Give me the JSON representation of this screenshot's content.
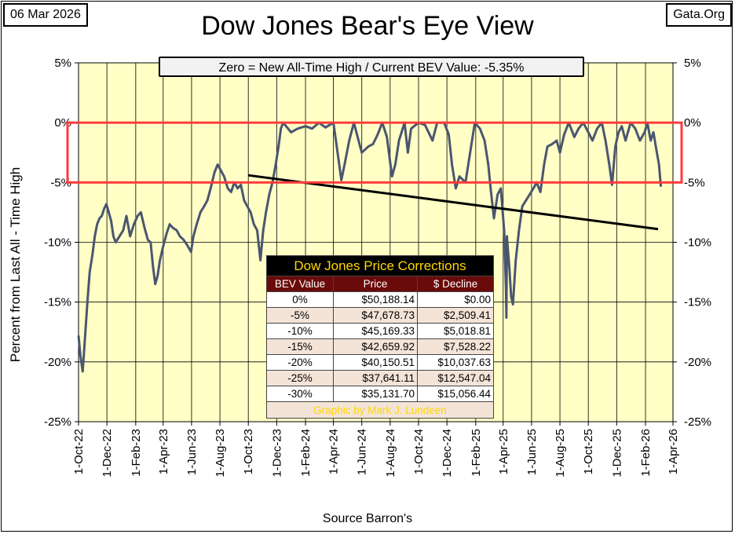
{
  "header": {
    "date": "06 Mar 2026",
    "site": "Gata.Org",
    "title": "Dow Jones Bear's Eye View",
    "subtitle": "Zero = New All-Time High / Current BEV Value:  -5.35%"
  },
  "chart_data": {
    "type": "line",
    "title": "Dow Jones Bear's Eye View",
    "ylabel": "Percent from Last All - Time  High",
    "xlabel": "Source Barron's",
    "ylim": [
      -25,
      5
    ],
    "yticks": [
      "5%",
      "0%",
      "-5%",
      "-10%",
      "-15%",
      "-20%",
      "-25%"
    ],
    "ytick_values": [
      5,
      0,
      -5,
      -10,
      -15,
      -20,
      -25
    ],
    "x_ticks": [
      "1-Oct-22",
      "1-Dec-22",
      "1-Feb-23",
      "1-Apr-23",
      "1-Jun-23",
      "1-Aug-23",
      "1-Oct-23",
      "1-Dec-23",
      "1-Feb-24",
      "1-Apr-24",
      "1-Jun-24",
      "1-Aug-24",
      "1-Oct-24",
      "1-Dec-24",
      "1-Feb-25",
      "1-Apr-25",
      "1-Jun-25",
      "1-Aug-25",
      "1-Oct-25",
      "1-Dec-25",
      "1-Feb-26",
      "1-Apr-26"
    ],
    "grid": true,
    "series": [
      {
        "color": "#4a5670",
        "points": [
          [
            "2022-10-01",
            -17.8
          ],
          [
            "2022-10-05",
            -19.5
          ],
          [
            "2022-10-10",
            -20.8
          ],
          [
            "2022-10-14",
            -18.5
          ],
          [
            "2022-10-20",
            -15.0
          ],
          [
            "2022-10-25",
            -12.5
          ],
          [
            "2022-10-31",
            -11.0
          ],
          [
            "2022-11-05",
            -9.5
          ],
          [
            "2022-11-10",
            -8.5
          ],
          [
            "2022-11-15",
            -8.0
          ],
          [
            "2022-11-20",
            -7.8
          ],
          [
            "2022-11-25",
            -7.2
          ],
          [
            "2022-11-30",
            -6.8
          ],
          [
            "2022-12-05",
            -7.5
          ],
          [
            "2022-12-10",
            -8.2
          ],
          [
            "2022-12-15",
            -9.5
          ],
          [
            "2022-12-20",
            -10.0
          ],
          [
            "2022-12-28",
            -9.5
          ],
          [
            "2023-01-05",
            -9.0
          ],
          [
            "2023-01-12",
            -7.8
          ],
          [
            "2023-01-20",
            -9.5
          ],
          [
            "2023-01-28",
            -8.5
          ],
          [
            "2023-02-05",
            -7.8
          ],
          [
            "2023-02-12",
            -7.5
          ],
          [
            "2023-02-20",
            -8.8
          ],
          [
            "2023-02-27",
            -9.8
          ],
          [
            "2023-03-05",
            -10.0
          ],
          [
            "2023-03-10",
            -12.0
          ],
          [
            "2023-03-15",
            -13.5
          ],
          [
            "2023-03-20",
            -12.8
          ],
          [
            "2023-03-25",
            -11.5
          ],
          [
            "2023-03-31",
            -10.5
          ],
          [
            "2023-04-08",
            -9.3
          ],
          [
            "2023-04-15",
            -8.5
          ],
          [
            "2023-04-22",
            -8.8
          ],
          [
            "2023-04-30",
            -9.0
          ],
          [
            "2023-05-07",
            -9.5
          ],
          [
            "2023-05-15",
            -9.8
          ],
          [
            "2023-05-22",
            -10.2
          ],
          [
            "2023-05-31",
            -10.8
          ],
          [
            "2023-06-05",
            -9.5
          ],
          [
            "2023-06-12",
            -8.5
          ],
          [
            "2023-06-20",
            -7.5
          ],
          [
            "2023-06-28",
            -7.0
          ],
          [
            "2023-07-05",
            -6.5
          ],
          [
            "2023-07-12",
            -5.5
          ],
          [
            "2023-07-20",
            -4.2
          ],
          [
            "2023-07-27",
            -3.5
          ],
          [
            "2023-08-03",
            -4.0
          ],
          [
            "2023-08-10",
            -4.5
          ],
          [
            "2023-08-18",
            -5.5
          ],
          [
            "2023-08-25",
            -5.8
          ],
          [
            "2023-09-01",
            -5.0
          ],
          [
            "2023-09-08",
            -5.5
          ],
          [
            "2023-09-15",
            -5.2
          ],
          [
            "2023-09-22",
            -6.5
          ],
          [
            "2023-09-29",
            -7.0
          ],
          [
            "2023-10-06",
            -7.5
          ],
          [
            "2023-10-13",
            -8.5
          ],
          [
            "2023-10-20",
            -9.0
          ],
          [
            "2023-10-27",
            -11.5
          ],
          [
            "2023-11-02",
            -9.0
          ],
          [
            "2023-11-08",
            -7.5
          ],
          [
            "2023-11-15",
            -6.0
          ],
          [
            "2023-11-22",
            -5.0
          ],
          [
            "2023-11-29",
            -3.5
          ],
          [
            "2023-12-05",
            -2.0
          ],
          [
            "2023-12-10",
            -0.5
          ],
          [
            "2023-12-15",
            0.0
          ],
          [
            "2024-01-01",
            -0.8
          ],
          [
            "2024-01-15",
            -0.5
          ],
          [
            "2024-02-01",
            -0.3
          ],
          [
            "2024-02-15",
            -0.5
          ],
          [
            "2024-03-01",
            0.0
          ],
          [
            "2024-03-15",
            -0.4
          ],
          [
            "2024-04-01",
            0.0
          ],
          [
            "2024-04-10",
            -2.5
          ],
          [
            "2024-04-18",
            -4.8
          ],
          [
            "2024-04-25",
            -3.5
          ],
          [
            "2024-05-05",
            -1.5
          ],
          [
            "2024-05-15",
            0.0
          ],
          [
            "2024-05-25",
            -1.5
          ],
          [
            "2024-06-01",
            -2.5
          ],
          [
            "2024-06-15",
            -2.0
          ],
          [
            "2024-06-25",
            -1.8
          ],
          [
            "2024-07-05",
            -1.0
          ],
          [
            "2024-07-15",
            0.0
          ],
          [
            "2024-07-25",
            -1.2
          ],
          [
            "2024-08-05",
            -4.5
          ],
          [
            "2024-08-12",
            -3.5
          ],
          [
            "2024-08-20",
            -1.5
          ],
          [
            "2024-09-01",
            0.0
          ],
          [
            "2024-09-08",
            -2.5
          ],
          [
            "2024-09-15",
            -0.5
          ],
          [
            "2024-10-01",
            0.0
          ],
          [
            "2024-10-15",
            -0.2
          ],
          [
            "2024-10-31",
            -1.5
          ],
          [
            "2024-11-10",
            0.0
          ],
          [
            "2024-11-25",
            0.0
          ],
          [
            "2024-12-05",
            -1.0
          ],
          [
            "2024-12-12",
            -3.5
          ],
          [
            "2024-12-20",
            -5.5
          ],
          [
            "2024-12-28",
            -4.5
          ],
          [
            "2025-01-10",
            -5.0
          ],
          [
            "2025-01-20",
            -2.5
          ],
          [
            "2025-01-30",
            0.0
          ],
          [
            "2025-02-10",
            -0.5
          ],
          [
            "2025-02-20",
            -1.5
          ],
          [
            "2025-02-28",
            -3.5
          ],
          [
            "2025-03-05",
            -5.5
          ],
          [
            "2025-03-12",
            -8.0
          ],
          [
            "2025-03-20",
            -6.0
          ],
          [
            "2025-03-27",
            -5.5
          ],
          [
            "2025-04-03",
            -9.0
          ],
          [
            "2025-04-07",
            -14.0
          ],
          [
            "2025-04-08",
            -16.3
          ],
          [
            "2025-04-09",
            -9.5
          ],
          [
            "2025-04-14",
            -12.0
          ],
          [
            "2025-04-18",
            -14.5
          ],
          [
            "2025-04-22",
            -15.2
          ],
          [
            "2025-04-28",
            -11.5
          ],
          [
            "2025-05-05",
            -9.0
          ],
          [
            "2025-05-12",
            -7.0
          ],
          [
            "2025-05-20",
            -6.5
          ],
          [
            "2025-05-28",
            -6.0
          ],
          [
            "2025-06-05",
            -5.5
          ],
          [
            "2025-06-12",
            -5.0
          ],
          [
            "2025-06-20",
            -5.8
          ],
          [
            "2025-06-28",
            -3.5
          ],
          [
            "2025-07-05",
            -2.0
          ],
          [
            "2025-07-15",
            -1.8
          ],
          [
            "2025-07-25",
            -1.5
          ],
          [
            "2025-08-01",
            -2.5
          ],
          [
            "2025-08-10",
            -1.0
          ],
          [
            "2025-08-20",
            0.0
          ],
          [
            "2025-09-01",
            -1.2
          ],
          [
            "2025-09-10",
            -0.5
          ],
          [
            "2025-09-20",
            0.0
          ],
          [
            "2025-10-01",
            -0.8
          ],
          [
            "2025-10-10",
            -1.5
          ],
          [
            "2025-10-20",
            -0.5
          ],
          [
            "2025-10-30",
            0.0
          ],
          [
            "2025-11-07",
            -1.5
          ],
          [
            "2025-11-15",
            -3.5
          ],
          [
            "2025-11-21",
            -5.2
          ],
          [
            "2025-11-28",
            -2.0
          ],
          [
            "2025-12-05",
            -0.8
          ],
          [
            "2025-12-12",
            -0.3
          ],
          [
            "2025-12-20",
            -1.5
          ],
          [
            "2025-12-31",
            0.0
          ],
          [
            "2026-01-10",
            -0.5
          ],
          [
            "2026-01-20",
            -1.5
          ],
          [
            "2026-01-30",
            -0.8
          ],
          [
            "2026-02-05",
            0.0
          ],
          [
            "2026-02-12",
            -1.5
          ],
          [
            "2026-02-18",
            -0.8
          ],
          [
            "2026-02-24",
            -2.2
          ],
          [
            "2026-03-02",
            -3.5
          ],
          [
            "2026-03-06",
            -5.35
          ]
        ]
      }
    ],
    "trend_line": {
      "color": "#000000",
      "from": [
        "2023-10-01",
        -4.4
      ],
      "to": [
        "2026-02-28",
        -8.9
      ]
    },
    "highlight_band": {
      "color": "#ff3b3b",
      "y_from": 0,
      "y_to": -5
    },
    "background_color": "#ffffc6"
  },
  "table": {
    "title": "Dow Jones Price Corrections",
    "headers": [
      "BEV Value",
      "Price",
      "$ Decline"
    ],
    "rows": [
      [
        "0%",
        "$50,188.14",
        "$0.00"
      ],
      [
        "-5%",
        "$47,678.73",
        "$2,509.41"
      ],
      [
        "-10%",
        "$45,169.33",
        "$5,018.81"
      ],
      [
        "-15%",
        "$42,659.92",
        "$7,528.22"
      ],
      [
        "-20%",
        "$40,150.51",
        "$10,037.63"
      ],
      [
        "-25%",
        "$37,641.11",
        "$12,547.04"
      ],
      [
        "-30%",
        "$35,131.70",
        "$15,056.44"
      ]
    ],
    "footer": "Graphic by Mark J. Lundeen"
  }
}
